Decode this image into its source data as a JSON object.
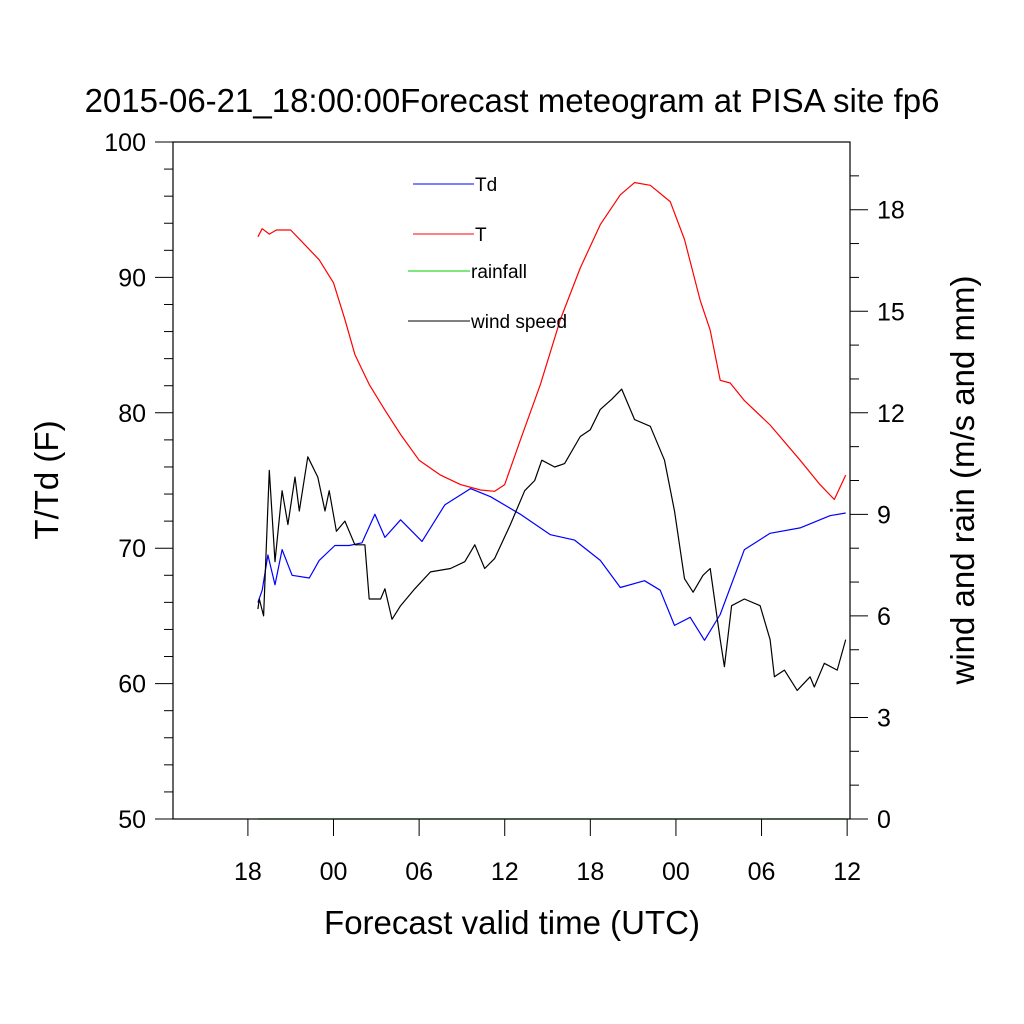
{
  "chart_data": {
    "type": "line",
    "title": "2015-06-21_18:00:00Forecast meteogram at PISA site fp6",
    "xlabel": "Forecast valid time (UTC)",
    "ylabel": "T/Td (F)",
    "y2label": "wind and rain (m/s and mm)",
    "x_units": "hours since first 18 UTC tick",
    "xlim": [
      -5.25,
      42.2
    ],
    "ylim": [
      50,
      100
    ],
    "y2lim": [
      0,
      20
    ],
    "grid": false,
    "legend_position": "top-center",
    "x_ticks": [
      {
        "value": 0,
        "label": "18"
      },
      {
        "value": 6,
        "label": "00"
      },
      {
        "value": 12,
        "label": "06"
      },
      {
        "value": 18,
        "label": "12"
      },
      {
        "value": 24,
        "label": "18"
      },
      {
        "value": 30,
        "label": "00"
      },
      {
        "value": 36,
        "label": "06"
      },
      {
        "value": 42,
        "label": "12"
      }
    ],
    "y_ticks": [
      {
        "value": 50,
        "label": "50"
      },
      {
        "value": 60,
        "label": "60"
      },
      {
        "value": 70,
        "label": "70"
      },
      {
        "value": 80,
        "label": "80"
      },
      {
        "value": 90,
        "label": "90"
      },
      {
        "value": 100,
        "label": "100"
      }
    ],
    "y2_ticks": [
      {
        "value": 0,
        "label": "0"
      },
      {
        "value": 3,
        "label": "3"
      },
      {
        "value": 6,
        "label": "6"
      },
      {
        "value": 9,
        "label": "9"
      },
      {
        "value": 12,
        "label": "12"
      },
      {
        "value": 15,
        "label": "15"
      },
      {
        "value": 18,
        "label": "18"
      }
    ],
    "series": [
      {
        "name": "Td",
        "color": "#0000ff",
        "axis": "left",
        "x": [
          0.7,
          1.0,
          1.4,
          1.9,
          2.4,
          3.1,
          4.3,
          5.0,
          6.1,
          7.1,
          8.0,
          8.9,
          9.6,
          10.7,
          12.2,
          13.8,
          15.6,
          17.0,
          19.1,
          21.2,
          22.9,
          24.7,
          26.1,
          27.8,
          28.9,
          29.9,
          31.0,
          32.0,
          33.1,
          34.8,
          36.6,
          38.7,
          40.8,
          41.9
        ],
        "values": [
          66.0,
          66.9,
          69.5,
          67.3,
          69.9,
          68.0,
          67.8,
          69.1,
          70.2,
          70.2,
          70.4,
          72.5,
          70.8,
          72.1,
          70.5,
          73.2,
          74.4,
          73.8,
          72.5,
          71.0,
          70.6,
          69.1,
          67.1,
          67.6,
          66.9,
          64.3,
          64.9,
          63.2,
          65.1,
          69.9,
          71.1,
          71.5,
          72.4,
          72.6
        ]
      },
      {
        "name": "T",
        "color": "#ff0000",
        "axis": "left",
        "x": [
          0.7,
          1.0,
          1.5,
          2.0,
          3.0,
          4.0,
          5.0,
          6.0,
          6.8,
          7.5,
          8.5,
          9.6,
          10.7,
          12.0,
          13.5,
          14.9,
          16.3,
          17.3,
          18.0,
          19.1,
          20.5,
          21.9,
          23.3,
          24.7,
          26.1,
          27.1,
          28.2,
          29.6,
          30.6,
          31.7,
          32.4,
          33.1,
          33.8,
          34.8,
          36.6,
          38.7,
          40.1,
          41.1,
          41.9
        ],
        "values": [
          93.0,
          93.6,
          93.2,
          93.5,
          93.5,
          92.4,
          91.3,
          89.6,
          86.9,
          84.3,
          82.1,
          80.2,
          78.4,
          76.5,
          75.4,
          74.7,
          74.3,
          74.2,
          74.7,
          78.0,
          82.1,
          86.9,
          90.7,
          93.9,
          96.1,
          97.0,
          96.8,
          95.6,
          92.8,
          88.3,
          86.1,
          82.4,
          82.2,
          80.9,
          79.1,
          76.5,
          74.7,
          73.6,
          75.4
        ]
      },
      {
        "name": "rainfall",
        "color": "#00cc00",
        "axis": "right",
        "x": [
          0.7,
          41.9
        ],
        "values": [
          0,
          0
        ]
      },
      {
        "name": "wind speed",
        "color": "#000000",
        "axis": "right",
        "x": [
          0.7,
          0.8,
          1.1,
          1.5,
          1.9,
          2.4,
          2.8,
          3.3,
          3.6,
          4.2,
          4.9,
          5.4,
          5.7,
          6.2,
          6.8,
          7.5,
          8.2,
          8.5,
          9.3,
          9.6,
          10.1,
          10.7,
          11.7,
          12.8,
          14.2,
          15.2,
          15.9,
          16.6,
          17.3,
          18.4,
          19.4,
          20.1,
          20.6,
          21.5,
          22.2,
          23.3,
          24.0,
          24.7,
          25.5,
          26.2,
          27.1,
          28.2,
          29.2,
          29.9,
          30.6,
          31.2,
          31.9,
          32.4,
          33.1,
          33.4,
          33.9,
          34.8,
          35.9,
          36.6,
          36.9,
          37.6,
          38.5,
          39.4,
          39.7,
          40.4,
          41.3,
          41.9
        ],
        "values": [
          6.2,
          6.5,
          6.0,
          10.3,
          7.6,
          9.7,
          8.7,
          10.1,
          9.1,
          10.7,
          10.1,
          9.1,
          9.7,
          8.5,
          8.8,
          8.1,
          8.1,
          6.5,
          6.5,
          6.8,
          5.9,
          6.3,
          6.8,
          7.3,
          7.4,
          7.6,
          8.1,
          7.4,
          7.7,
          8.7,
          9.7,
          10.0,
          10.6,
          10.4,
          10.5,
          11.3,
          11.5,
          12.1,
          12.4,
          12.7,
          11.8,
          11.6,
          10.6,
          9.1,
          7.1,
          6.7,
          7.2,
          7.4,
          5.3,
          4.5,
          6.3,
          6.5,
          6.3,
          5.3,
          4.2,
          4.4,
          3.8,
          4.2,
          3.9,
          4.6,
          4.4,
          5.3
        ]
      }
    ]
  }
}
